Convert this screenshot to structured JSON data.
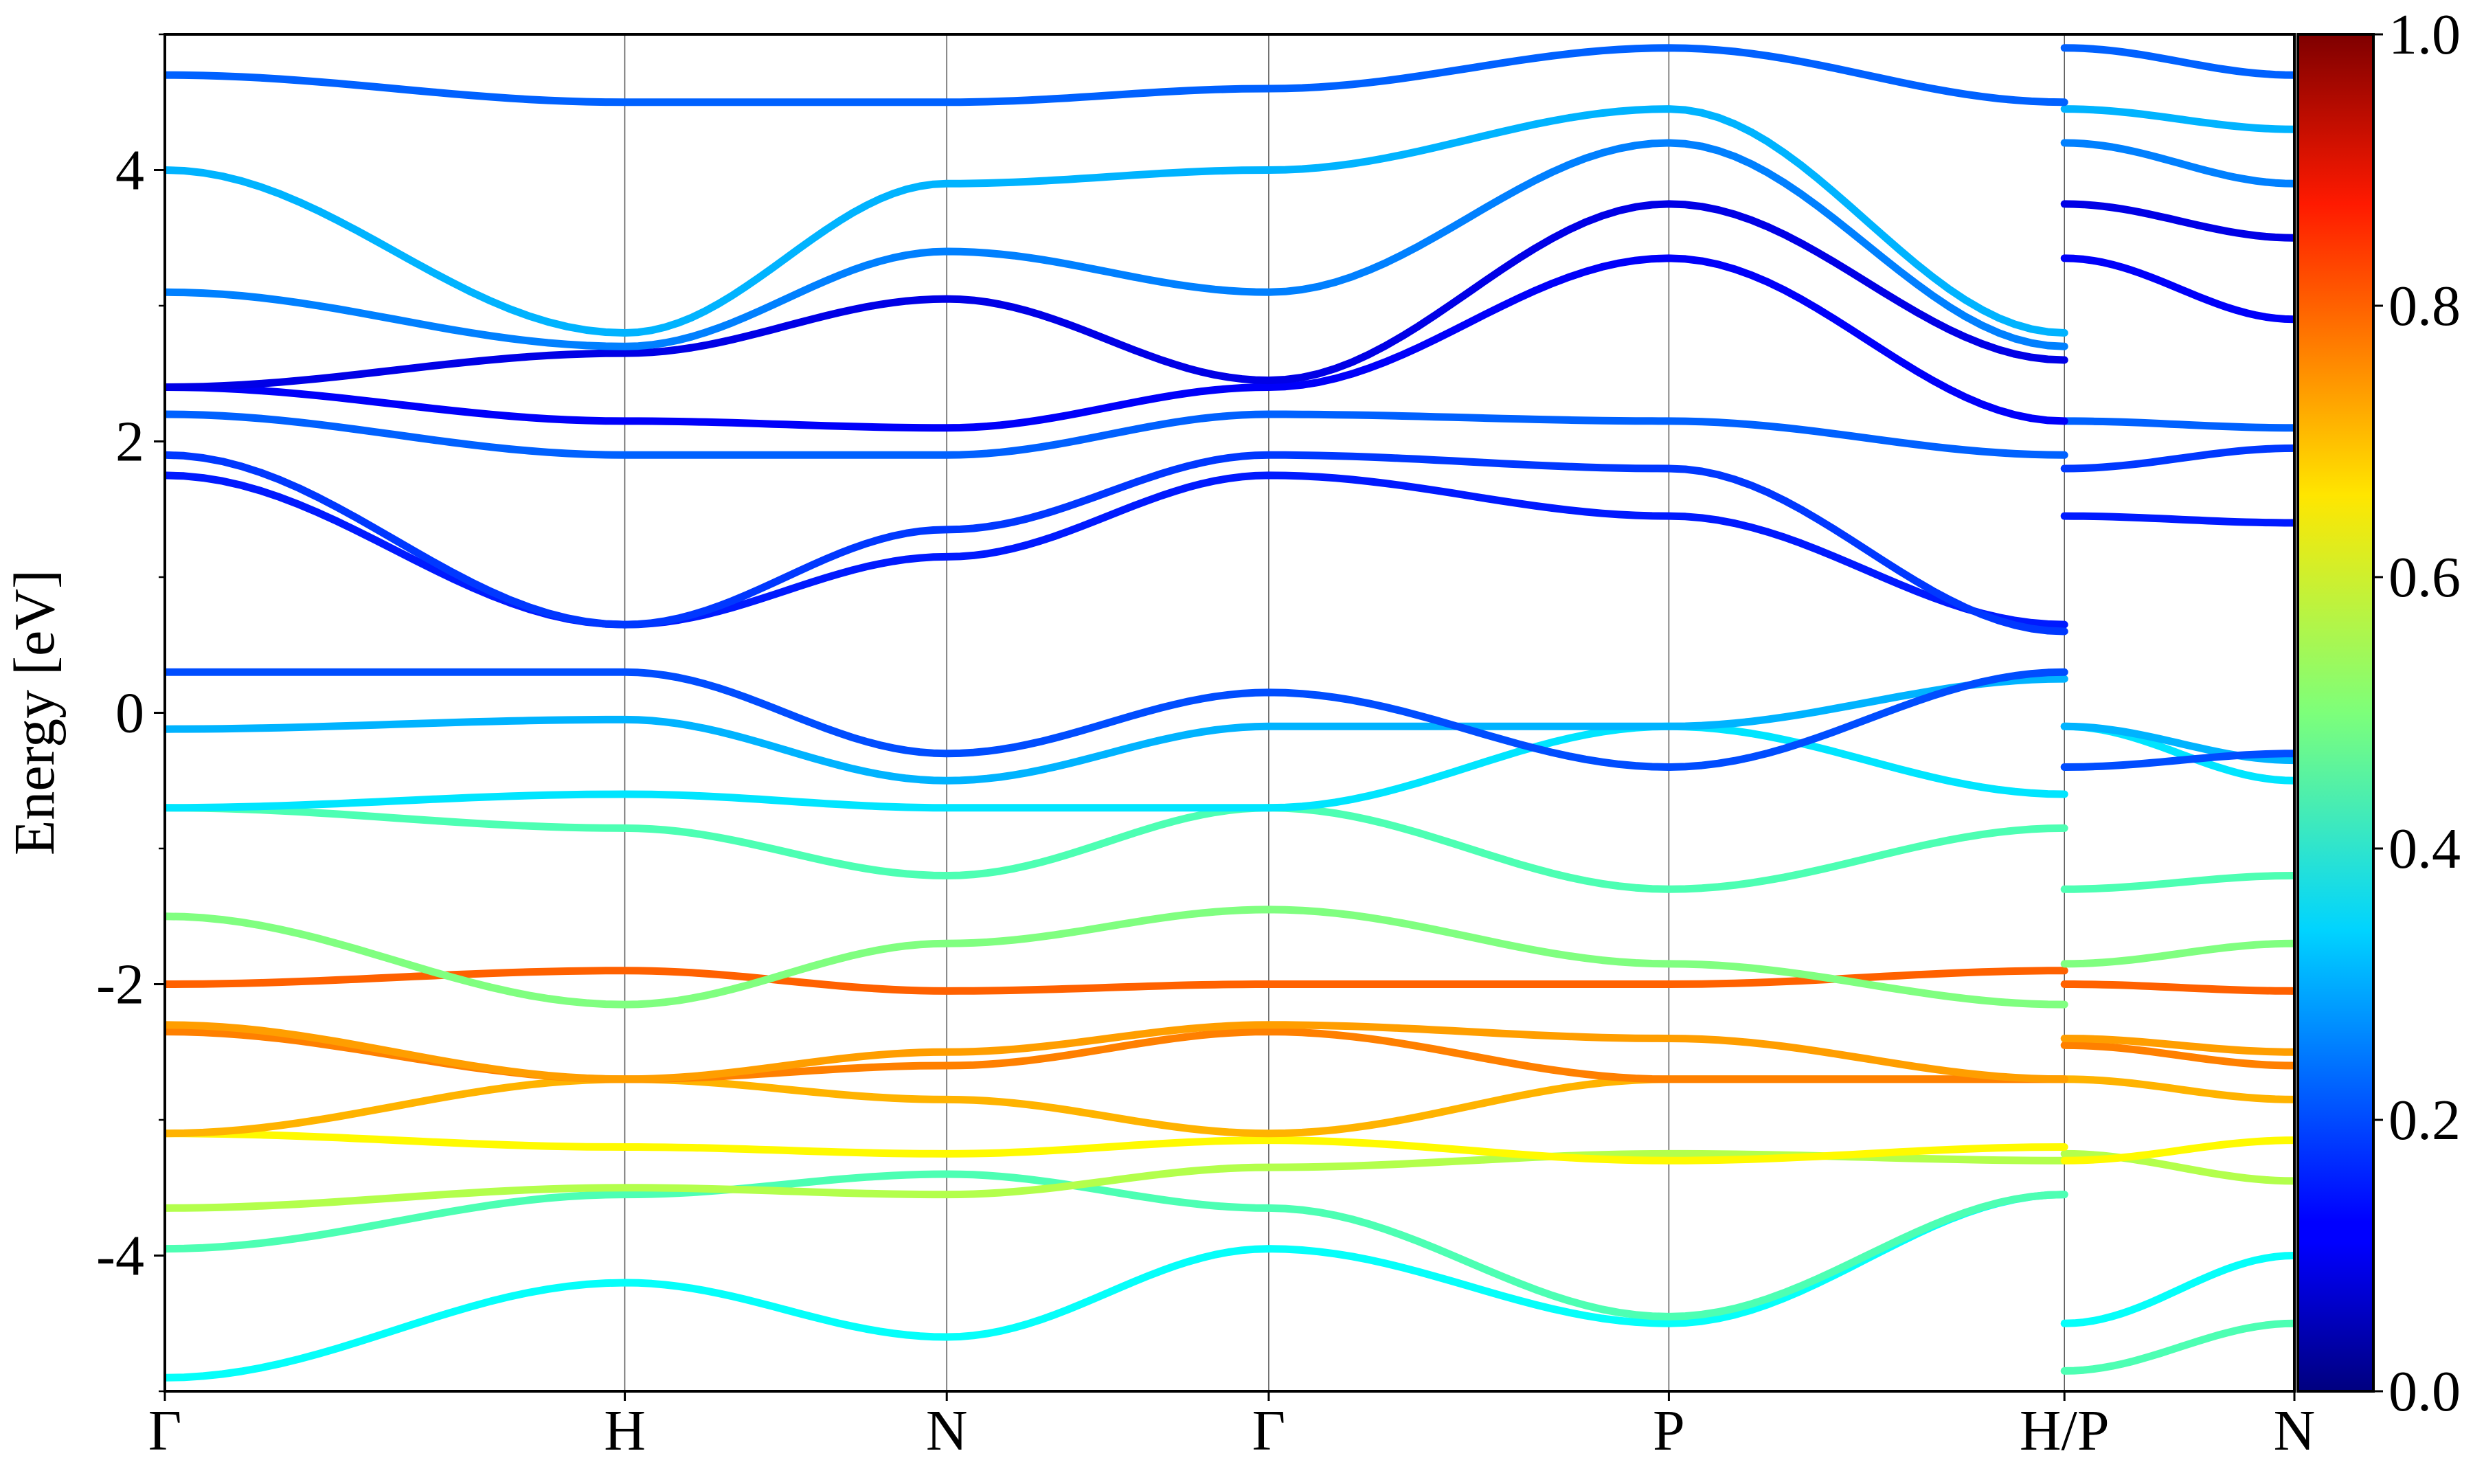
{
  "chart_data": {
    "type": "line",
    "title": "",
    "xlabel": "",
    "ylabel": "Energy [eV]",
    "ylim": [
      -5,
      5
    ],
    "k_path_labels": [
      "Γ",
      "H",
      "N",
      "Γ",
      "P",
      "H/P",
      "N"
    ],
    "k_path_positions": [
      0.0,
      1.0,
      1.7,
      2.4,
      3.27,
      4.13,
      4.63
    ],
    "yticks": [
      -4,
      -2,
      0,
      2,
      4
    ],
    "ytick_labels": [
      "-4",
      "-2",
      "0",
      "2",
      "4"
    ],
    "colorbar": {
      "colormap": "jet",
      "range": [
        0.0,
        1.0
      ],
      "ticks": [
        0.0,
        0.2,
        0.4,
        0.6,
        0.8,
        1.0
      ],
      "tick_labels": [
        "0.0",
        "0.2",
        "0.4",
        "0.6",
        "0.8",
        "1.0"
      ]
    },
    "series": [
      {
        "x": [
          0.0,
          1.0,
          1.7,
          2.4,
          3.27,
          4.13,
          4.13,
          4.63
        ],
        "values": [
          -4.9,
          -4.2,
          -4.6,
          -3.95,
          -4.5,
          -3.55,
          -4.5,
          -4.0
        ],
        "weight": 0.38
      },
      {
        "x": [
          0.0,
          1.0,
          1.7,
          2.4,
          3.27,
          4.13,
          4.13,
          4.63
        ],
        "values": [
          -3.95,
          -3.55,
          -3.4,
          -3.65,
          -4.45,
          -3.55,
          -4.85,
          -4.5
        ],
        "weight": 0.45
      },
      {
        "x": [
          0.0,
          1.0,
          1.7,
          2.4,
          3.27,
          4.13,
          4.13,
          4.63
        ],
        "values": [
          -3.65,
          -3.5,
          -3.55,
          -3.35,
          -3.25,
          -3.3,
          -3.25,
          -3.45
        ],
        "weight": 0.55
      },
      {
        "x": [
          0.0,
          1.0,
          1.7,
          2.4,
          3.27,
          4.13,
          4.13,
          4.63
        ],
        "values": [
          -3.1,
          -3.2,
          -3.25,
          -3.15,
          -3.3,
          -3.2,
          -3.3,
          -3.15
        ],
        "weight": 0.63
      },
      {
        "x": [
          0.0,
          1.0,
          1.7,
          2.4,
          3.27,
          4.13,
          4.13,
          4.63
        ],
        "values": [
          -3.1,
          -2.7,
          -2.85,
          -3.1,
          -2.7,
          -2.7,
          -2.7,
          -2.85
        ],
        "weight": 0.7
      },
      {
        "x": [
          0.0,
          1.0,
          1.7,
          2.4,
          3.27,
          4.13,
          4.13,
          4.63
        ],
        "values": [
          -2.35,
          -2.7,
          -2.6,
          -2.35,
          -2.7,
          -2.7,
          -2.45,
          -2.6
        ],
        "weight": 0.75
      },
      {
        "x": [
          0.0,
          1.0,
          1.7,
          2.4,
          3.27,
          4.13,
          4.13,
          4.63
        ],
        "values": [
          -2.3,
          -2.7,
          -2.5,
          -2.3,
          -2.4,
          -2.7,
          -2.4,
          -2.5
        ],
        "weight": 0.72
      },
      {
        "x": [
          0.0,
          1.0,
          1.7,
          2.4,
          3.27,
          4.13,
          4.13,
          4.63
        ],
        "values": [
          -2.0,
          -1.9,
          -2.05,
          -2.0,
          -2.0,
          -1.9,
          -2.0,
          -2.05
        ],
        "weight": 0.78
      },
      {
        "x": [
          0.0,
          1.0,
          1.7,
          2.4,
          3.27,
          4.13,
          4.13,
          4.63
        ],
        "values": [
          -1.5,
          -2.15,
          -1.7,
          -1.45,
          -1.85,
          -2.15,
          -1.85,
          -1.7
        ],
        "weight": 0.5
      },
      {
        "x": [
          0.0,
          1.0,
          1.7,
          2.4,
          3.27,
          4.13,
          4.13,
          4.63
        ],
        "values": [
          -0.7,
          -0.85,
          -1.2,
          -0.7,
          -1.3,
          -0.85,
          -1.3,
          -1.2
        ],
        "weight": 0.45
      },
      {
        "x": [
          0.0,
          1.0,
          1.7,
          2.4,
          3.27,
          4.13,
          4.13,
          4.63
        ],
        "values": [
          -0.7,
          -0.6,
          -0.7,
          -0.7,
          -0.1,
          -0.6,
          -0.1,
          -0.5
        ],
        "weight": 0.35
      },
      {
        "x": [
          0.0,
          1.0,
          1.7,
          2.4,
          3.27,
          4.13,
          4.13,
          4.63
        ],
        "values": [
          -0.12,
          -0.05,
          -0.5,
          -0.1,
          -0.1,
          0.25,
          -0.1,
          -0.35
        ],
        "weight": 0.3
      },
      {
        "x": [
          0.0,
          1.0,
          1.7,
          2.4,
          3.27,
          4.13,
          4.13,
          4.63
        ],
        "values": [
          0.3,
          0.3,
          -0.3,
          0.15,
          -0.4,
          0.3,
          -0.4,
          -0.3
        ],
        "weight": 0.2
      },
      {
        "x": [
          0.0,
          1.0,
          1.7,
          2.4,
          3.27,
          4.13,
          4.13,
          4.63
        ],
        "values": [
          1.75,
          0.65,
          1.15,
          1.75,
          1.45,
          0.65,
          1.45,
          1.4
        ],
        "weight": 0.15
      },
      {
        "x": [
          0.0,
          1.0,
          1.7,
          2.4,
          3.27,
          4.13,
          4.13,
          4.63
        ],
        "values": [
          1.9,
          0.65,
          1.35,
          1.9,
          1.8,
          0.6,
          1.8,
          1.95
        ],
        "weight": 0.18
      },
      {
        "x": [
          0.0,
          1.0,
          1.7,
          2.4,
          3.27,
          4.13,
          4.13,
          4.63
        ],
        "values": [
          2.2,
          1.9,
          1.9,
          2.2,
          2.15,
          1.9,
          2.15,
          2.1
        ],
        "weight": 0.22
      },
      {
        "x": [
          0.0,
          1.0,
          1.7,
          2.4,
          3.27,
          4.13,
          4.13,
          4.63
        ],
        "values": [
          2.4,
          2.15,
          2.1,
          2.4,
          3.35,
          2.15,
          3.35,
          2.9
        ],
        "weight": 0.12
      },
      {
        "x": [
          0.0,
          1.0,
          1.7,
          2.4,
          3.27,
          4.13,
          4.13,
          4.63
        ],
        "values": [
          2.4,
          2.65,
          3.05,
          2.45,
          3.75,
          2.6,
          3.75,
          3.5
        ],
        "weight": 0.1
      },
      {
        "x": [
          0.0,
          1.0,
          1.7,
          2.4,
          3.27,
          4.13,
          4.13,
          4.63
        ],
        "values": [
          3.1,
          2.7,
          3.4,
          3.1,
          4.2,
          2.7,
          4.2,
          3.9
        ],
        "weight": 0.25
      },
      {
        "x": [
          0.0,
          1.0,
          1.7,
          2.4,
          3.27,
          4.13,
          4.13,
          4.63
        ],
        "values": [
          4.0,
          2.8,
          3.9,
          4.0,
          4.45,
          2.8,
          4.45,
          4.3
        ],
        "weight": 0.3
      },
      {
        "x": [
          0.0,
          1.0,
          1.7,
          2.4,
          3.27,
          4.13,
          4.13,
          4.63
        ],
        "values": [
          4.7,
          4.5,
          4.5,
          4.6,
          4.9,
          4.5,
          4.9,
          4.7
        ],
        "weight": 0.22
      }
    ]
  }
}
